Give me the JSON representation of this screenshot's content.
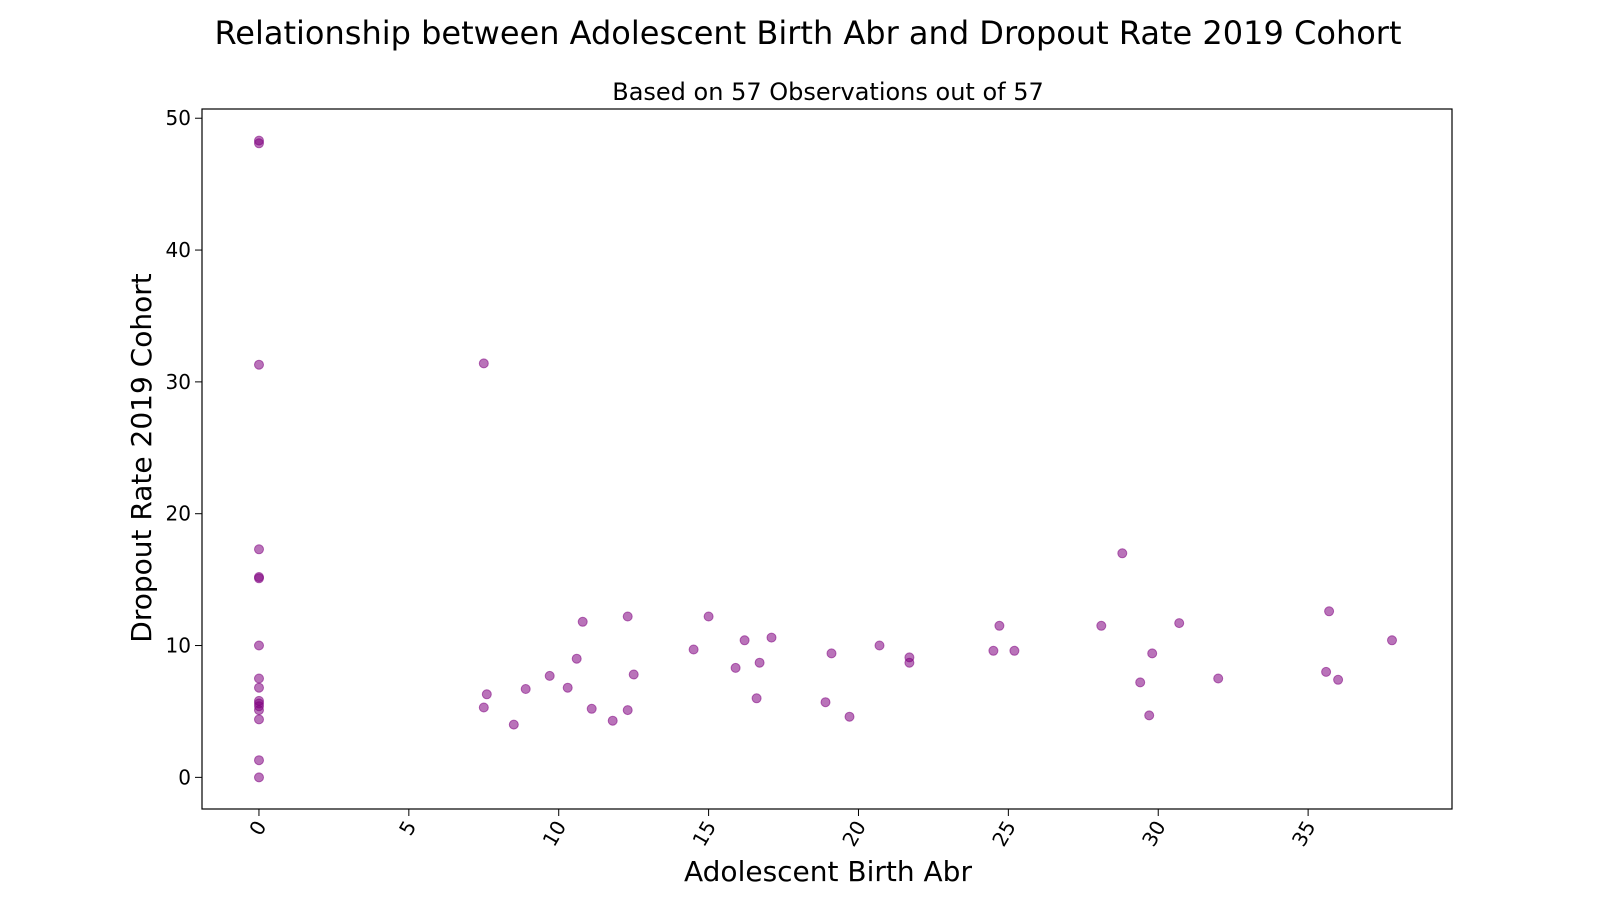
{
  "chart_data": {
    "type": "scatter",
    "title": "Relationship between Adolescent Birth Abr and Dropout Rate 2019 Cohort",
    "subtitle": "Based on 57 Observations out of 57",
    "xlabel": "Adolescent Birth Abr",
    "ylabel": "Dropout Rate 2019 Cohort",
    "xlim": [
      -1.9,
      39.8
    ],
    "ylim": [
      -2.4,
      50.7
    ],
    "xticks": [
      0,
      5,
      10,
      15,
      20,
      25,
      30,
      35
    ],
    "yticks": [
      0,
      10,
      20,
      30,
      40,
      50
    ],
    "x_tick_rotation": 60,
    "grid": false,
    "legend": false,
    "point_color": "#800080",
    "point_opacity": 0.55,
    "points": [
      {
        "x": 0,
        "y": 48.3
      },
      {
        "x": 0,
        "y": 48.1
      },
      {
        "x": 0,
        "y": 31.3
      },
      {
        "x": 0,
        "y": 17.3
      },
      {
        "x": 0,
        "y": 15.2
      },
      {
        "x": 0,
        "y": 15.1
      },
      {
        "x": 0,
        "y": 10.0
      },
      {
        "x": 0,
        "y": 7.5
      },
      {
        "x": 0,
        "y": 6.8
      },
      {
        "x": 0,
        "y": 5.8
      },
      {
        "x": 0,
        "y": 5.6
      },
      {
        "x": 0,
        "y": 5.4
      },
      {
        "x": 0,
        "y": 5.1
      },
      {
        "x": 0,
        "y": 4.4
      },
      {
        "x": 0,
        "y": 1.3
      },
      {
        "x": 0,
        "y": 0.0
      },
      {
        "x": 7.5,
        "y": 31.4
      },
      {
        "x": 7.5,
        "y": 5.3
      },
      {
        "x": 7.6,
        "y": 6.3
      },
      {
        "x": 8.5,
        "y": 4.0
      },
      {
        "x": 8.9,
        "y": 6.7
      },
      {
        "x": 9.7,
        "y": 7.7
      },
      {
        "x": 10.3,
        "y": 6.8
      },
      {
        "x": 10.6,
        "y": 9.0
      },
      {
        "x": 10.8,
        "y": 11.8
      },
      {
        "x": 11.1,
        "y": 5.2
      },
      {
        "x": 11.8,
        "y": 4.3
      },
      {
        "x": 12.3,
        "y": 12.2
      },
      {
        "x": 12.3,
        "y": 5.1
      },
      {
        "x": 12.5,
        "y": 7.8
      },
      {
        "x": 14.5,
        "y": 9.7
      },
      {
        "x": 15.0,
        "y": 12.2
      },
      {
        "x": 15.9,
        "y": 8.3
      },
      {
        "x": 16.2,
        "y": 10.4
      },
      {
        "x": 16.6,
        "y": 6.0
      },
      {
        "x": 16.7,
        "y": 8.7
      },
      {
        "x": 17.1,
        "y": 10.6
      },
      {
        "x": 18.9,
        "y": 5.7
      },
      {
        "x": 19.1,
        "y": 9.4
      },
      {
        "x": 19.7,
        "y": 4.6
      },
      {
        "x": 20.7,
        "y": 10.0
      },
      {
        "x": 21.7,
        "y": 9.1
      },
      {
        "x": 21.7,
        "y": 8.7
      },
      {
        "x": 24.5,
        "y": 9.6
      },
      {
        "x": 24.7,
        "y": 11.5
      },
      {
        "x": 25.2,
        "y": 9.6
      },
      {
        "x": 28.1,
        "y": 11.5
      },
      {
        "x": 28.8,
        "y": 17.0
      },
      {
        "x": 29.4,
        "y": 7.2
      },
      {
        "x": 29.7,
        "y": 4.7
      },
      {
        "x": 29.8,
        "y": 9.4
      },
      {
        "x": 30.7,
        "y": 11.7
      },
      {
        "x": 32.0,
        "y": 7.5
      },
      {
        "x": 35.6,
        "y": 8.0
      },
      {
        "x": 35.7,
        "y": 12.6
      },
      {
        "x": 36.0,
        "y": 7.4
      },
      {
        "x": 37.8,
        "y": 10.4
      }
    ]
  }
}
